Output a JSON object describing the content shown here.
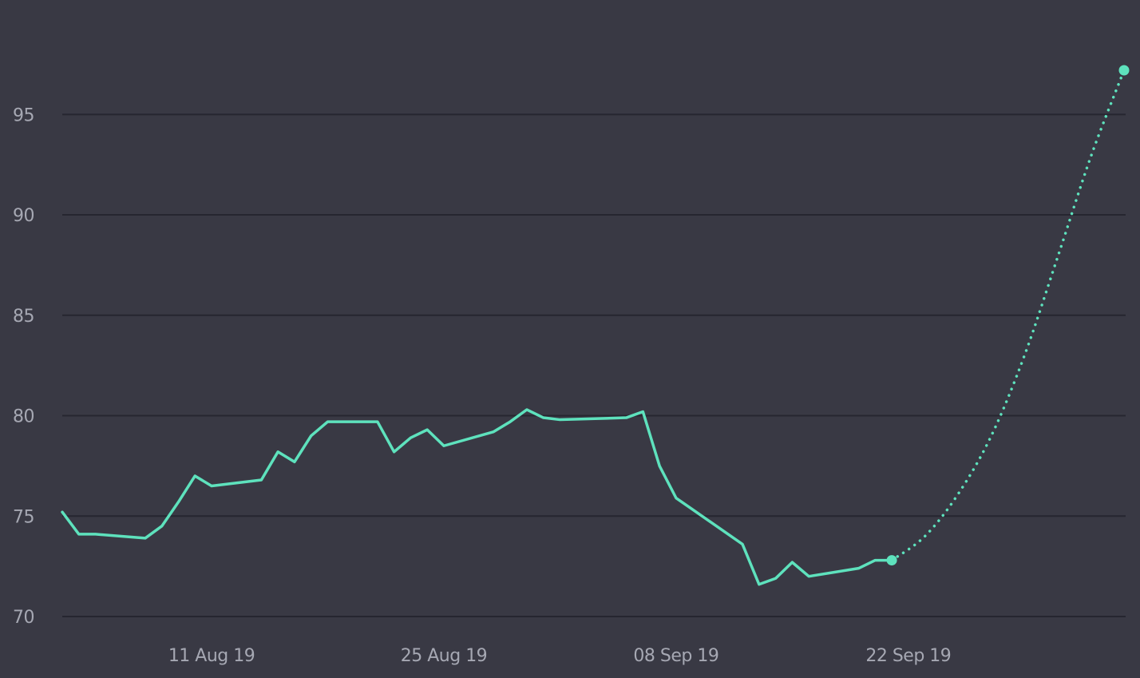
{
  "chart_data": {
    "type": "line",
    "title": "",
    "xlabel": "",
    "ylabel": "",
    "grid": true,
    "ylim": [
      70,
      97.2
    ],
    "xlim": [
      "2019-08-02",
      "2019-10-05"
    ],
    "yticks": [
      70,
      75,
      80,
      85,
      90,
      95
    ],
    "xticks": [
      {
        "date": "2019-08-11",
        "label": "11 Aug 19"
      },
      {
        "date": "2019-08-25",
        "label": "25 Aug 19"
      },
      {
        "date": "2019-09-08",
        "label": "08 Sep 19"
      },
      {
        "date": "2019-09-22",
        "label": "22 Sep 19"
      }
    ],
    "series": [
      {
        "style": "solid",
        "color": "#5ee2bd",
        "points": [
          [
            "2019-08-02",
            75.2
          ],
          [
            "2019-08-03",
            74.1
          ],
          [
            "2019-08-04",
            74.1
          ],
          [
            "2019-08-07",
            73.9
          ],
          [
            "2019-08-08",
            74.5
          ],
          [
            "2019-08-09",
            75.7
          ],
          [
            "2019-08-10",
            77.0
          ],
          [
            "2019-08-11",
            76.5
          ],
          [
            "2019-08-14",
            76.8
          ],
          [
            "2019-08-15",
            78.2
          ],
          [
            "2019-08-16",
            77.7
          ],
          [
            "2019-08-17",
            79.0
          ],
          [
            "2019-08-18",
            79.7
          ],
          [
            "2019-08-21",
            79.7
          ],
          [
            "2019-08-22",
            78.2
          ],
          [
            "2019-08-23",
            78.9
          ],
          [
            "2019-08-24",
            79.3
          ],
          [
            "2019-08-25",
            78.5
          ],
          [
            "2019-08-28",
            79.2
          ],
          [
            "2019-08-29",
            79.7
          ],
          [
            "2019-08-30",
            80.3
          ],
          [
            "2019-08-31",
            79.9
          ],
          [
            "2019-09-01",
            79.8
          ],
          [
            "2019-09-05",
            79.9
          ],
          [
            "2019-09-06",
            80.2
          ],
          [
            "2019-09-07",
            77.5
          ],
          [
            "2019-09-08",
            75.9
          ],
          [
            "2019-09-12",
            73.6
          ],
          [
            "2019-09-13",
            71.6
          ],
          [
            "2019-09-14",
            71.9
          ],
          [
            "2019-09-15",
            72.7
          ],
          [
            "2019-09-16",
            72.0
          ],
          [
            "2019-09-19",
            72.4
          ],
          [
            "2019-09-20",
            72.8
          ],
          [
            "2019-09-21",
            72.8
          ]
        ]
      },
      {
        "style": "dotted",
        "color": "#5ee2bd",
        "points": [
          [
            "2019-09-21",
            72.8
          ],
          [
            "2019-09-23",
            74.0
          ],
          [
            "2019-09-25",
            76.1
          ],
          [
            "2019-09-27",
            79.0
          ],
          [
            "2019-09-29",
            83.0
          ],
          [
            "2019-10-01",
            87.9
          ],
          [
            "2019-10-03",
            92.9
          ],
          [
            "2019-10-05",
            97.2
          ]
        ]
      }
    ]
  }
}
